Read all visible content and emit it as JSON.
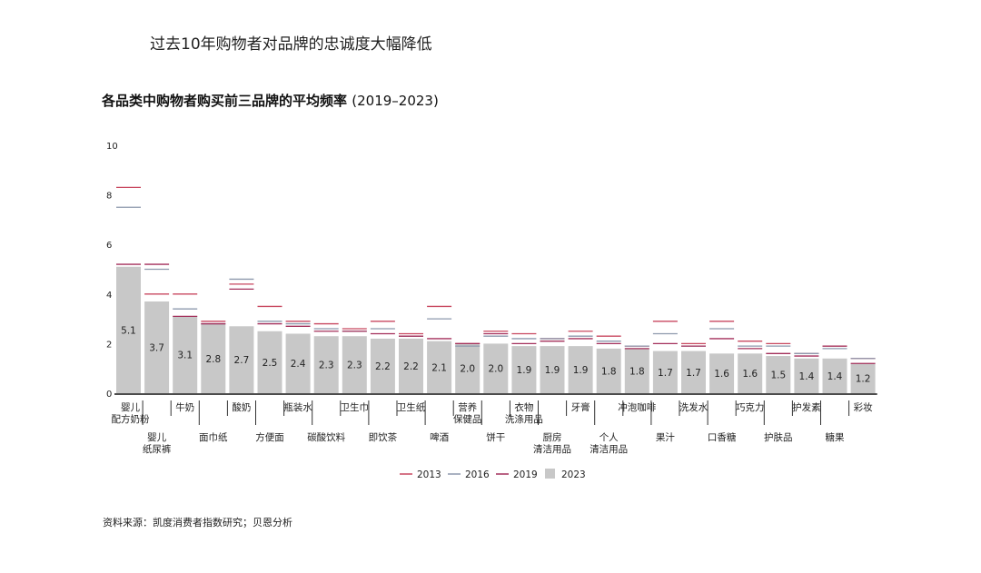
{
  "headline": "过去10年购物者对品牌的忠诚度大幅降低",
  "source": "资料来源：凯度消费者指数研究；贝恩分析",
  "chart_data": {
    "type": "bar",
    "title": "各品类中购物者购买前三品牌的平均频率",
    "period": "(2019–2023)",
    "ylim": [
      0,
      10
    ],
    "yticks": [
      0,
      2,
      4,
      6,
      8,
      10
    ],
    "categories": [
      "婴儿\n配方奶粉",
      "婴儿\n纸尿裤",
      "牛奶",
      "面巾纸",
      "酸奶",
      "方便面",
      "瓶装水",
      "碳酸饮料",
      "卫生巾",
      "即饮茶",
      "卫生纸",
      "啤酒",
      "营养\n保健品",
      "饼干",
      "衣物\n洗涤用品",
      "厨房\n清洁用品",
      "牙膏",
      "个人\n清洁用品",
      "冲泡咖啡",
      "果汁",
      "洗发水",
      "口香糖",
      "巧克力",
      "护肤品",
      "护发素",
      "糖果",
      "彩妆"
    ],
    "label_rows": [
      0,
      1,
      0,
      1,
      0,
      1,
      0,
      1,
      0,
      1,
      0,
      1,
      0,
      1,
      0,
      1,
      0,
      1,
      0,
      1,
      0,
      1,
      0,
      1,
      0,
      1,
      0
    ],
    "series": [
      {
        "name": "2013",
        "style": "line",
        "color": "#c8475f",
        "values": [
          8.3,
          4.0,
          4.0,
          2.9,
          4.4,
          3.5,
          2.9,
          2.8,
          2.6,
          2.9,
          2.4,
          3.5,
          2.0,
          2.5,
          2.4,
          2.2,
          2.5,
          2.3,
          1.9,
          2.9,
          2.0,
          2.9,
          2.1,
          2.0,
          1.6,
          1.9,
          1.4
        ]
      },
      {
        "name": "2016",
        "style": "line",
        "color": "#8e99ad",
        "values": [
          7.5,
          5.0,
          3.4,
          2.8,
          4.6,
          2.9,
          2.8,
          2.6,
          2.5,
          2.6,
          2.3,
          3.0,
          1.9,
          2.3,
          2.2,
          2.2,
          2.3,
          2.1,
          1.9,
          2.4,
          1.9,
          2.6,
          1.9,
          1.9,
          1.6,
          1.8,
          1.4
        ]
      },
      {
        "name": "2019",
        "style": "line",
        "color": "#a32f5a",
        "values": [
          5.2,
          5.2,
          3.1,
          2.8,
          4.2,
          2.8,
          2.7,
          2.5,
          2.5,
          2.4,
          2.3,
          2.2,
          2.0,
          2.4,
          2.0,
          2.1,
          2.2,
          2.0,
          1.8,
          2.0,
          1.9,
          2.2,
          1.8,
          1.6,
          1.5,
          1.9,
          1.2
        ]
      },
      {
        "name": "2023",
        "style": "bar",
        "color": "#c8c8c8",
        "values": [
          5.1,
          3.7,
          3.1,
          2.8,
          2.7,
          2.5,
          2.4,
          2.3,
          2.3,
          2.2,
          2.2,
          2.1,
          2.0,
          2.0,
          1.9,
          1.9,
          1.9,
          1.8,
          1.8,
          1.7,
          1.7,
          1.6,
          1.6,
          1.5,
          1.4,
          1.4,
          1.2
        ]
      }
    ],
    "data_labels": [
      "5.1",
      "3.7",
      "3.1",
      "2.8",
      "2.7",
      "2.5",
      "2.4",
      "2.3",
      "2.3",
      "2.2",
      "2.2",
      "2.1",
      "2.0",
      "2.0",
      "1.9",
      "1.9",
      "1.9",
      "1.8",
      "1.8",
      "1.7",
      "1.7",
      "1.6",
      "1.6",
      "1.5",
      "1.4",
      "1.4",
      "1.2"
    ],
    "legend_position": "bottom-center",
    "grid": false
  }
}
